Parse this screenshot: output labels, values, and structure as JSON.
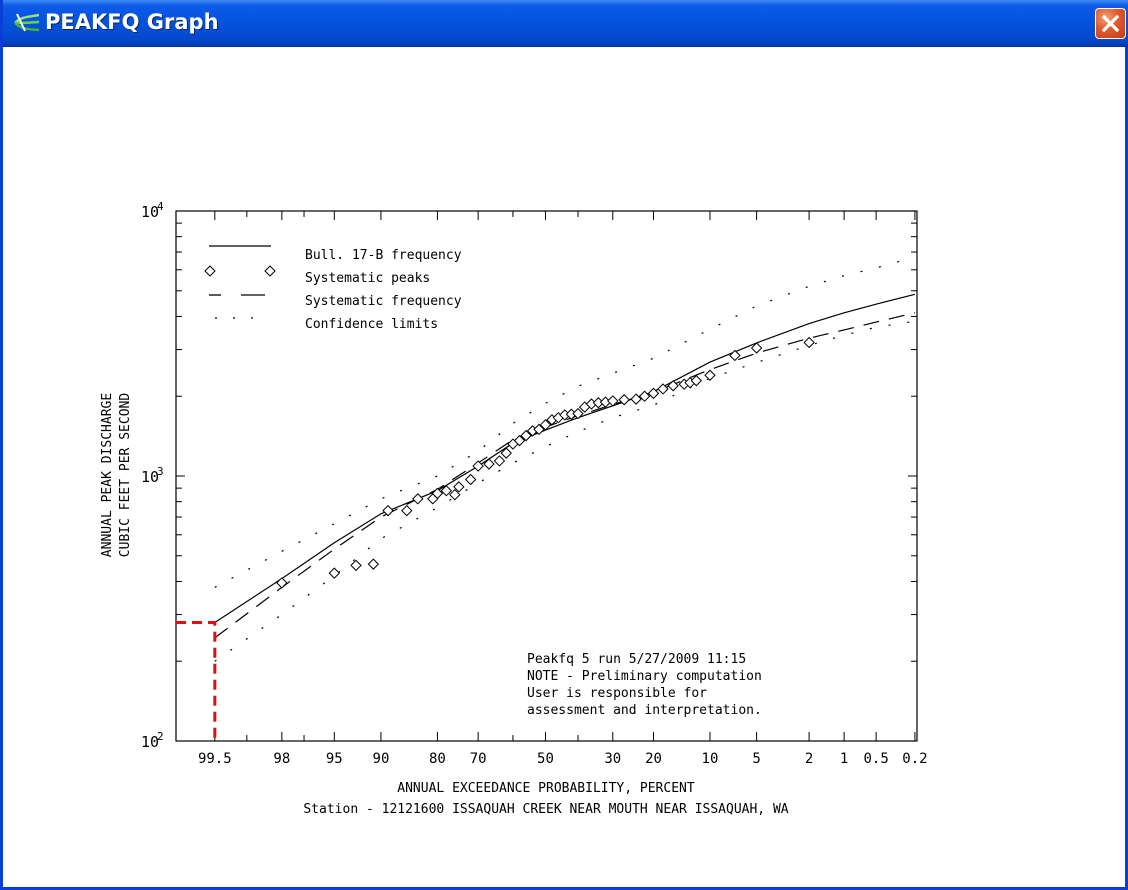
{
  "window": {
    "title": "PEAKFQ Graph",
    "app_icon": "peakfq-graph-icon",
    "close_icon": "close-icon",
    "accent": "#0552dd",
    "close_color": "#e05a2e"
  },
  "chart_data": {
    "type": "scatter",
    "title": "",
    "xlabel": "ANNUAL EXCEEDANCE PROBABILITY, PERCENT",
    "ylabel_lines": [
      "ANNUAL PEAK DISCHARGE",
      "CUBIC FEET PER SECOND"
    ],
    "subtitle": "Station - 12121600  ISSAQUAH CREEK NEAR MOUTH NEAR ISSAQUAH, WA",
    "x_scale": "normal-probability",
    "x_direction": "decreasing",
    "xlim": [
      99.8,
      0.19
    ],
    "y_scale": "log",
    "ylim": [
      100,
      10000
    ],
    "y_ticks": [
      {
        "base": "10",
        "exp": "2",
        "value": 100
      },
      {
        "base": "10",
        "exp": "3",
        "value": 1000
      },
      {
        "base": "10",
        "exp": "4",
        "value": 10000
      }
    ],
    "x_tick_labels": [
      {
        "label": "99.5",
        "value": 99.5
      },
      {
        "label": "98",
        "value": 98
      },
      {
        "label": "95",
        "value": 95
      },
      {
        "label": "90",
        "value": 90
      },
      {
        "label": "80",
        "value": 80
      },
      {
        "label": "70",
        "value": 70
      },
      {
        "label": "50",
        "value": 50
      },
      {
        "label": "30",
        "value": 30
      },
      {
        "label": "20",
        "value": 20
      },
      {
        "label": "10",
        "value": 10
      },
      {
        "label": "5",
        "value": 5
      },
      {
        "label": "2",
        "value": 2
      },
      {
        "label": "1",
        "value": 1
      },
      {
        "label": "0.5",
        "value": 0.5
      },
      {
        "label": "0.2",
        "value": 0.2
      }
    ],
    "x_minor_ticks": [
      99.8,
      99,
      97,
      60,
      40
    ],
    "legend_placement": "top-left",
    "legend": [
      {
        "label": "Bull. 17-B frequency",
        "style": "solid"
      },
      {
        "label": "Systematic peaks",
        "style": "diamond"
      },
      {
        "label": "Systematic frequency",
        "style": "dashed"
      },
      {
        "label": "Confidence limits",
        "style": "dotted"
      }
    ],
    "annotation_lines": [
      "Peakfq 5 run 5/27/2009 11:15",
      "NOTE - Preliminary computation",
      "User is responsible for",
      "assessment and interpretation."
    ],
    "series": [
      {
        "name": "Bull. 17-B frequency",
        "style": "solid",
        "x": [
          99.5,
          98,
          95,
          90,
          80,
          70,
          60,
          50,
          40,
          30,
          20,
          10,
          5,
          2,
          1,
          0.5,
          0.2
        ],
        "y": [
          280,
          410,
          560,
          720,
          880,
          1090,
          1330,
          1490,
          1660,
          1840,
          2080,
          2690,
          3180,
          3760,
          4130,
          4450,
          4850
        ]
      },
      {
        "name": "Systematic frequency",
        "style": "dashed",
        "x": [
          99.5,
          98,
          95,
          90,
          80,
          70,
          60,
          50,
          40,
          30,
          20,
          10,
          5,
          2,
          1,
          0.5,
          0.2
        ],
        "y": [
          245,
          380,
          530,
          700,
          890,
          1120,
          1370,
          1530,
          1690,
          1860,
          2070,
          2520,
          2910,
          3310,
          3560,
          3810,
          4130
        ]
      },
      {
        "name": "Confidence limits (upper)",
        "style": "dotted",
        "x": [
          99.5,
          98,
          95,
          90,
          80,
          70,
          60,
          50,
          40,
          30,
          20,
          10,
          5,
          2,
          1,
          0.5,
          0.2
        ],
        "y": [
          380,
          520,
          660,
          820,
          1000,
          1240,
          1580,
          1880,
          2180,
          2440,
          2780,
          3580,
          4380,
          5200,
          5700,
          6100,
          6700
        ]
      },
      {
        "name": "Confidence limits (lower)",
        "style": "dotted",
        "x": [
          99.5,
          98,
          95,
          90,
          80,
          70,
          60,
          50,
          40,
          30,
          20,
          10,
          5,
          2,
          1,
          0.5,
          0.2
        ],
        "y": [
          200,
          300,
          420,
          580,
          760,
          940,
          1120,
          1290,
          1470,
          1660,
          1850,
          2340,
          2680,
          3110,
          3400,
          3640,
          3840
        ]
      },
      {
        "name": "Systematic peaks",
        "style": "diamond",
        "x": [
          98,
          95,
          93,
          91,
          89,
          86,
          84,
          81,
          80,
          78,
          76,
          75,
          72,
          70,
          67,
          64,
          62,
          60,
          58,
          56,
          54,
          52,
          50,
          48,
          46,
          44,
          42,
          40,
          38,
          36,
          34,
          32,
          30,
          27,
          24,
          22,
          20,
          18,
          16,
          14,
          13,
          12,
          10,
          7,
          5,
          2
        ],
        "y": [
          395,
          430,
          460,
          465,
          740,
          740,
          820,
          820,
          860,
          880,
          850,
          910,
          970,
          1090,
          1110,
          1140,
          1220,
          1320,
          1360,
          1420,
          1480,
          1500,
          1560,
          1630,
          1660,
          1700,
          1710,
          1720,
          1820,
          1870,
          1890,
          1900,
          1920,
          1940,
          1950,
          2000,
          2050,
          2130,
          2190,
          2220,
          2250,
          2290,
          2400,
          2850,
          3040,
          3190
        ]
      }
    ],
    "highlight": {
      "style": "red-dashed",
      "color": "#e01010",
      "x": 99.5,
      "y": 280
    }
  }
}
